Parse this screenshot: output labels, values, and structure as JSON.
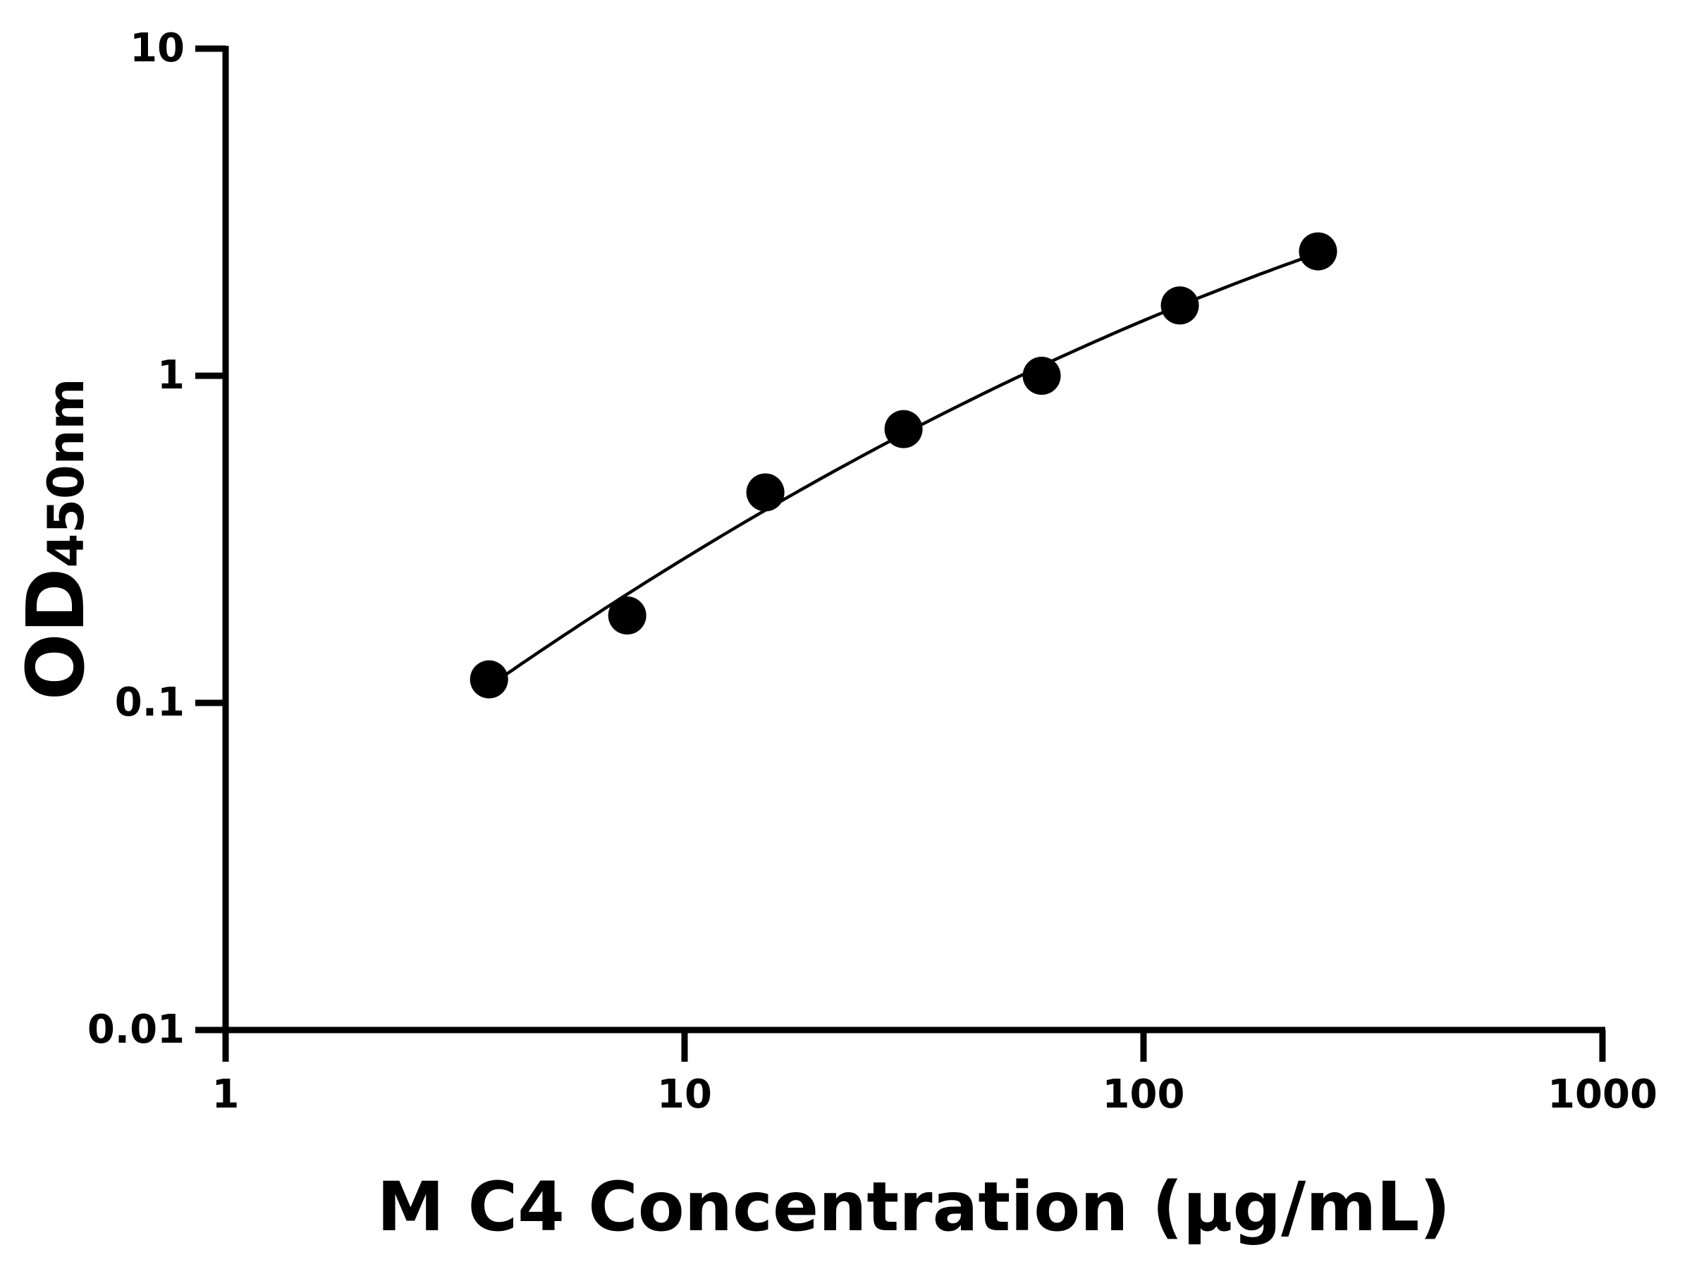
{
  "chart_data": {
    "type": "scatter",
    "title": "",
    "xlabel": "M C4 Concentration (μg/mL)",
    "ylabel": "OD",
    "ylabel_subscript": "450nm",
    "x_scale": "log",
    "y_scale": "log",
    "xlim": [
      1,
      1000
    ],
    "ylim": [
      0.01,
      10
    ],
    "x_ticks": [
      "1",
      "10",
      "100",
      "1000"
    ],
    "y_ticks": [
      "0.01",
      "0.1",
      "1",
      "10"
    ],
    "grid": false,
    "legend": "none",
    "colors": {
      "points": "#000000",
      "curve": "#000000"
    },
    "series": [
      {
        "x": [
          3.75,
          7.5,
          15,
          30,
          60,
          120,
          240
        ],
        "y": [
          0.118,
          0.185,
          0.44,
          0.687,
          1.0,
          1.64,
          2.4
        ],
        "fit_curve": true
      }
    ]
  }
}
